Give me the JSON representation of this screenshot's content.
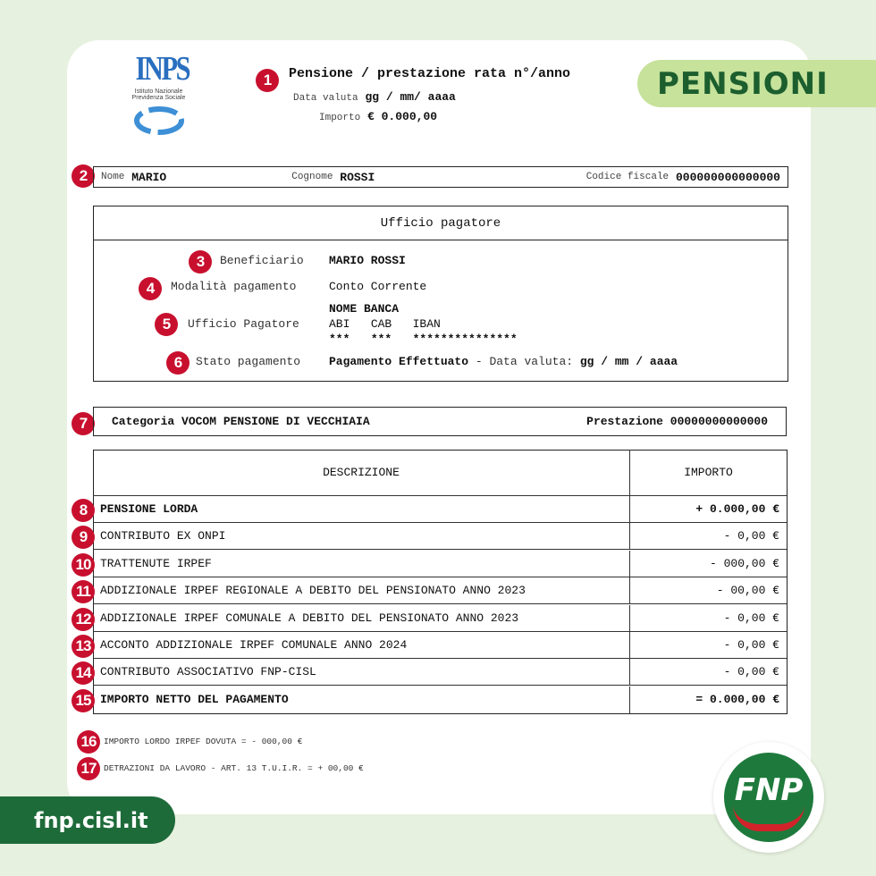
{
  "badge": {
    "label": "PENSIONI",
    "color": "#c6e29b",
    "text_color": "#1c5e2e"
  },
  "site": {
    "label": "fnp.cisl.it",
    "color": "#1e6b3a"
  },
  "fnp_logo": {
    "text": "FNP"
  },
  "inps": {
    "logo": "INPS",
    "subtitle1": "Istituto Nazionale",
    "subtitle2": "Previdenza Sociale"
  },
  "header": {
    "title": "Pensione / prestazione rata n°/anno",
    "data_label": "Data valuta",
    "data_value": "gg / mm/ aaaa",
    "importo_label": "Importo",
    "importo_value": "€ 0.000,00"
  },
  "person": {
    "nome_label": "Nome",
    "nome": "MARIO",
    "cognome_label": "Cognome",
    "cognome": "ROSSI",
    "cf_label": "Codice fiscale",
    "cf": "000000000000000"
  },
  "ufficio": {
    "title": "Ufficio pagatore",
    "beneficiario_label": "Beneficiario",
    "beneficiario": "MARIO ROSSI",
    "modalita_label": "Modalità pagamento",
    "modalita": "Conto Corrente",
    "ufficio_label": "Ufficio Pagatore",
    "banca": "NOME BANCA",
    "abi": "ABI",
    "cab": "CAB",
    "iban": "IBAN",
    "abi_v": "***",
    "cab_v": "***",
    "iban_v": "***************",
    "stato_label": "Stato pagamento",
    "stato": "Pagamento Effettuato",
    "stato_data_label": "- Data valuta:",
    "stato_data": "gg / mm / aaaa"
  },
  "categoria": {
    "label": "Categoria VOCOM PENSIONE DI VECCHIAIA",
    "prest_label": "Prestazione",
    "prest": "00000000000000"
  },
  "table": {
    "headers": [
      "DESCRIZIONE",
      "IMPORTO"
    ],
    "rows": [
      {
        "n": "8",
        "desc": "PENSIONE LORDA",
        "val": "+ 0.000,00 €",
        "bold": true
      },
      {
        "n": "9",
        "desc": "CONTRIBUTO EX ONPI",
        "val": "- 0,00 €"
      },
      {
        "n": "10",
        "desc": "TRATTENUTE IRPEF",
        "val": "- 000,00 €"
      },
      {
        "n": "11",
        "desc": "ADDIZIONALE IRPEF REGIONALE A DEBITO DEL PENSIONATO ANNO 2023",
        "val": "- 00,00 €"
      },
      {
        "n": "12",
        "desc": "ADDIZIONALE IRPEF COMUNALE A DEBITO DEL PENSIONATO ANNO 2023",
        "val": "- 0,00 €"
      },
      {
        "n": "13",
        "desc": "ACCONTO ADDIZIONALE IRPEF COMUNALE ANNO 2024",
        "val": "- 0,00 €"
      },
      {
        "n": "14",
        "desc": "CONTRIBUTO ASSOCIATIVO FNP-CISL",
        "val": "- 0,00 €"
      },
      {
        "n": "15",
        "desc": "IMPORTO NETTO DEL PAGAMENTO",
        "val": "= 0.000,00 €",
        "bold": true
      }
    ]
  },
  "notes": [
    {
      "n": "16",
      "text": "IMPORTO LORDO IRPEF DOVUTA = - 000,00 €"
    },
    {
      "n": "17",
      "text": "DETRAZIONI DA LAVORO - ART. 13 T.U.I.R. = + 00,00 €"
    }
  ],
  "markers": [
    "1",
    "2",
    "3",
    "4",
    "5",
    "6",
    "7"
  ]
}
